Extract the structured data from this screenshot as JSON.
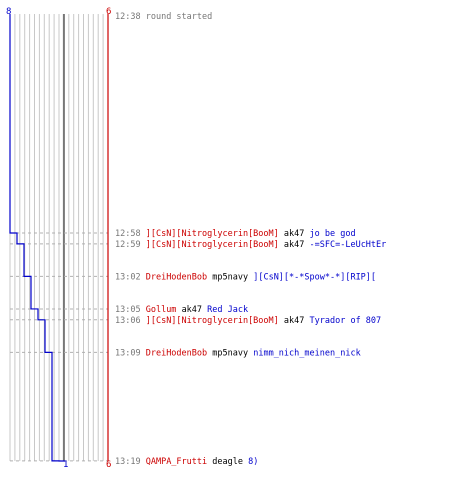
{
  "chart_data": {
    "type": "line",
    "title": "",
    "colors": {
      "red_team": "#cc0000",
      "blue_team": "#0000cc",
      "time": "#777777",
      "weapon": "#000000"
    },
    "red_team": {
      "start": 6,
      "end": 6
    },
    "blue_team": {
      "start": 8,
      "end": 1
    },
    "x_axis": {
      "min": 0,
      "max": 10,
      "grid": true,
      "marker": 5.5
    },
    "blue_alive_steps": [
      8,
      7,
      6,
      5,
      4,
      3,
      2,
      1
    ],
    "events": [
      {
        "time": "12:38",
        "row_minute": 0,
        "killer": "",
        "killer_team": "",
        "weapon": "",
        "victim": "",
        "victim_team": "",
        "text": "round started"
      },
      {
        "time": "12:58",
        "row_minute": 20,
        "killer": "][CsN][Nitroglycerin[BooM]",
        "killer_team": "red",
        "weapon": "ak47",
        "victim": "jo be god",
        "victim_team": "blue"
      },
      {
        "time": "12:59",
        "row_minute": 21,
        "killer": "][CsN][Nitroglycerin[BooM]",
        "killer_team": "red",
        "weapon": "ak47",
        "victim": "-=SFC=-LeUcHtEr",
        "victim_team": "blue"
      },
      {
        "time": "13:02",
        "row_minute": 24,
        "killer": "DreiHodenBob",
        "killer_team": "red",
        "weapon": "mp5navy",
        "victim": "][CsN][*-*Spow*-*][RIP][",
        "victim_team": "blue"
      },
      {
        "time": "13:05",
        "row_minute": 27,
        "killer": "Gollum",
        "killer_team": "red",
        "weapon": "ak47",
        "victim": "Red Jack",
        "victim_team": "blue"
      },
      {
        "time": "13:06",
        "row_minute": 28,
        "killer": "][CsN][Nitroglycerin[BooM]",
        "killer_team": "red",
        "weapon": "ak47",
        "victim": "Tyrador of 807",
        "victim_team": "blue"
      },
      {
        "time": "13:09",
        "row_minute": 31,
        "killer": "DreiHodenBob",
        "killer_team": "red",
        "weapon": "mp5navy",
        "victim": "nimm_nich_meinen_nick",
        "victim_team": "blue"
      },
      {
        "time": "13:19",
        "row_minute": 41,
        "killer": "QAMPA_Frutti",
        "killer_team": "red",
        "weapon": "deagle",
        "victim": "8)",
        "victim_team": "blue"
      }
    ]
  }
}
